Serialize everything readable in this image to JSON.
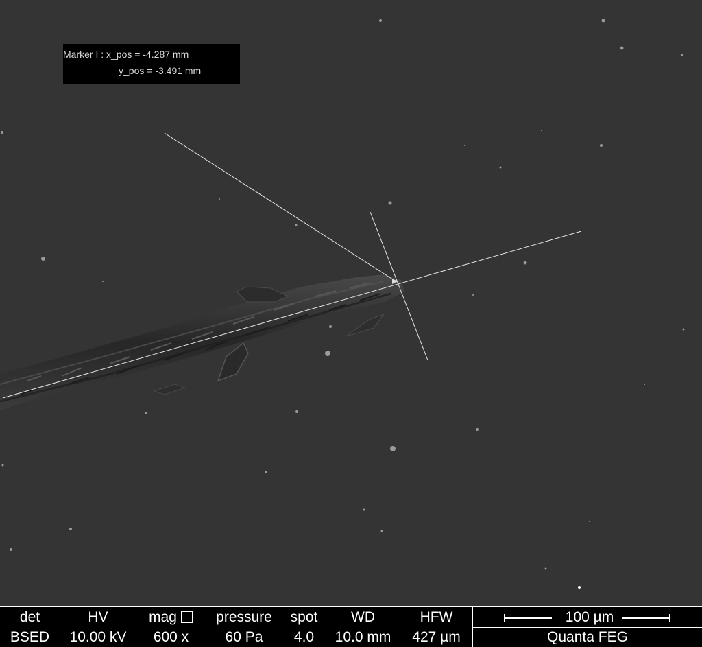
{
  "marker": {
    "line1": "Marker I : x_pos = -4.287 mm",
    "line2": "y_pos = -3.491 mm"
  },
  "databar": {
    "det": {
      "label": "det",
      "value": "BSED"
    },
    "hv": {
      "label": "HV",
      "value": "10.00 kV"
    },
    "mag": {
      "label": "mag",
      "value": "600 x"
    },
    "pressure": {
      "label": "pressure",
      "value": "60 Pa"
    },
    "spot": {
      "label": "spot",
      "value": "4.0"
    },
    "wd": {
      "label": "WD",
      "value": "10.0 mm"
    },
    "hfw": {
      "label": "HFW",
      "value": "427 µm"
    },
    "scale": {
      "label": "100 µm",
      "instrument": "Quanta FEG"
    }
  },
  "colors": {
    "background": "#343434",
    "overlay_text": "#d8d8d8",
    "databar": "#000000"
  }
}
